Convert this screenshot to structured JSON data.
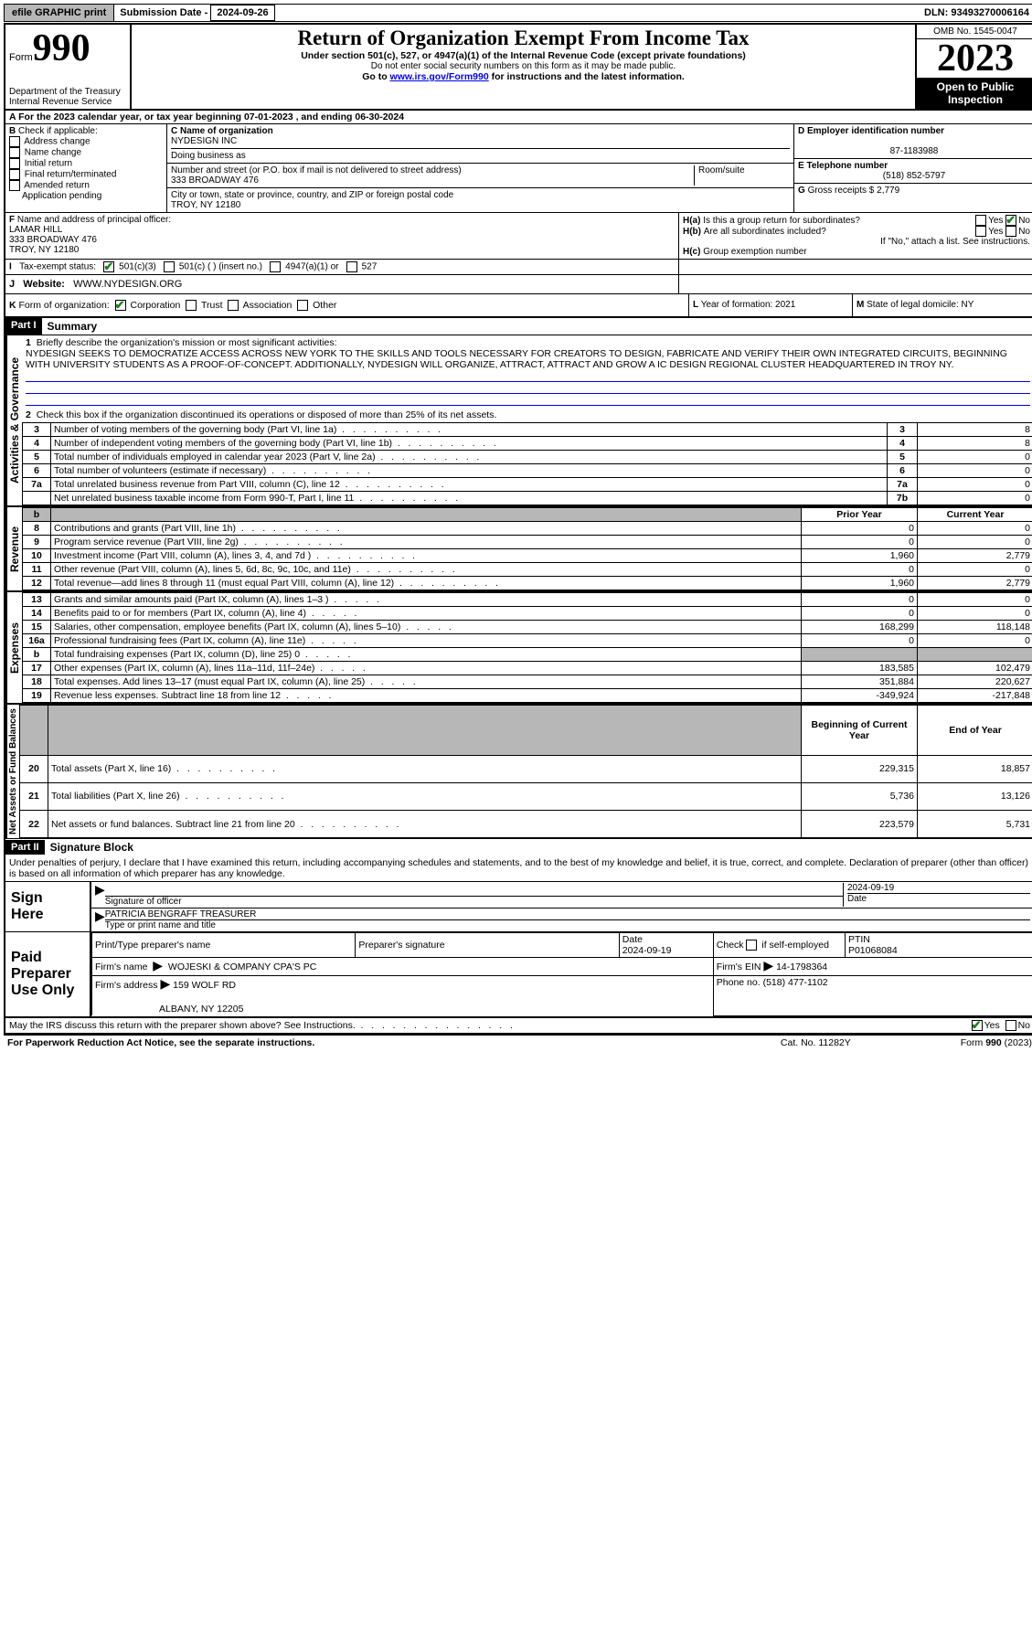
{
  "topbar": {
    "efile": "efile GRAPHIC print",
    "sub_lbl": "Submission Date - ",
    "sub_date": "2024-09-26",
    "dln_lbl": "DLN: ",
    "dln": "93493270006164"
  },
  "header": {
    "form_prefix": "Form",
    "form_no": "990",
    "dept": "Department of the Treasury",
    "irs": "Internal Revenue Service",
    "title": "Return of Organization Exempt From Income Tax",
    "sub1": "Under section 501(c), 527, or 4947(a)(1) of the Internal Revenue Code (except private foundations)",
    "sub2": "Do not enter social security numbers on this form as it may be made public.",
    "sub3_pre": "Go to ",
    "sub3_link": "www.irs.gov/Form990",
    "sub3_post": " for instructions and the latest information.",
    "omb": "OMB No. 1545-0047",
    "year": "2023",
    "open": "Open to Public Inspection"
  },
  "rowA": {
    "label": "A",
    "text": "For the 2023 calendar year, or tax year beginning 07-01-2023    , and ending 06-30-2024"
  },
  "B": {
    "lbl": "B",
    "intro": "Check if applicable:",
    "items": [
      "Address change",
      "Name change",
      "Initial return",
      "Final return/terminated",
      "Amended return",
      "Application pending"
    ]
  },
  "C": {
    "name_lbl": "C Name of organization",
    "name": "NYDESIGN INC",
    "dba_lbl": "Doing business as",
    "addr_lbl": "Number and street (or P.O. box if mail is not delivered to street address)",
    "room_lbl": "Room/suite",
    "addr": "333 BROADWAY 476",
    "city_lbl": "City or town, state or province, country, and ZIP or foreign postal code",
    "city": "TROY, NY  12180"
  },
  "D": {
    "lbl": "D Employer identification number",
    "val": "87-1183988"
  },
  "E": {
    "lbl": "E Telephone number",
    "val": "(518) 852-5797"
  },
  "G": {
    "lbl": "G",
    "text": "Gross receipts $",
    "val": "2,779"
  },
  "F": {
    "lbl": "F",
    "intro": "Name and address of principal officer:",
    "name": "LAMAR HILL",
    "addr1": "333 BROADWAY 476",
    "addr2": "TROY, NY  12180"
  },
  "H": {
    "a_lbl": "H(a)",
    "a_text": "Is this a group return for subordinates?",
    "b_lbl": "H(b)",
    "b_text": "Are all subordinates included?",
    "attach": "If \"No,\" attach a list. See instructions.",
    "c_lbl": "H(c)",
    "c_text": "Group exemption number",
    "yes": "Yes",
    "no": "No"
  },
  "I": {
    "lbl": "I",
    "intro": "Tax-exempt status:",
    "o1": "501(c)(3)",
    "o2": "501(c) (  ) (insert no.)",
    "o3": "4947(a)(1) or",
    "o4": "527"
  },
  "J": {
    "lbl": "J",
    "intro": "Website:",
    "val": "WWW.NYDESIGN.ORG"
  },
  "K": {
    "lbl": "K",
    "intro": "Form of organization:",
    "opts": [
      "Corporation",
      "Trust",
      "Association",
      "Other"
    ]
  },
  "L": {
    "lbl": "L",
    "text": "Year of formation: 2021"
  },
  "M": {
    "lbl": "M",
    "text": "State of legal domicile: NY"
  },
  "part1": {
    "hdr": "Part I",
    "title": "Summary",
    "q1_lbl": "1",
    "q1": "Briefly describe the organization's mission or most significant activities:",
    "mission": "NYDESIGN SEEKS TO DEMOCRATIZE ACCESS ACROSS NEW YORK TO THE SKILLS AND TOOLS NECESSARY FOR CREATORS TO DESIGN, FABRICATE AND VERIFY THEIR OWN INTEGRATED CIRCUITS, BEGINNING WITH UNIVERSITY STUDENTS AS A PROOF-OF-CONCEPT. ADDITIONALLY, NYDESIGN WILL ORGANIZE, ATTRACT, ATTRACT AND GROW A IC DESIGN REGIONAL CLUSTER HEADQUARTERED IN TROY NY.",
    "q2_lbl": "2",
    "q2": "Check this box      if the organization discontinued its operations or disposed of more than 25% of its net assets.",
    "vert_gov": "Activities & Governance",
    "vert_rev": "Revenue",
    "vert_exp": "Expenses",
    "vert_net": "Net Assets or Fund Balances",
    "lines_gov": [
      {
        "n": "3",
        "d": "Number of voting members of the governing body (Part VI, line 1a)",
        "b": "3",
        "v": "8"
      },
      {
        "n": "4",
        "d": "Number of independent voting members of the governing body (Part VI, line 1b)",
        "b": "4",
        "v": "8"
      },
      {
        "n": "5",
        "d": "Total number of individuals employed in calendar year 2023 (Part V, line 2a)",
        "b": "5",
        "v": "0"
      },
      {
        "n": "6",
        "d": "Total number of volunteers (estimate if necessary)",
        "b": "6",
        "v": "0"
      },
      {
        "n": "7a",
        "d": "Total unrelated business revenue from Part VIII, column (C), line 12",
        "b": "7a",
        "v": "0"
      },
      {
        "n": "",
        "d": "Net unrelated business taxable income from Form 990-T, Part I, line 11",
        "b": "7b",
        "v": "0"
      }
    ],
    "col_prior": "Prior Year",
    "col_curr": "Current Year",
    "lines_rev": [
      {
        "n": "8",
        "d": "Contributions and grants (Part VIII, line 1h)",
        "p": "0",
        "c": "0"
      },
      {
        "n": "9",
        "d": "Program service revenue (Part VIII, line 2g)",
        "p": "0",
        "c": "0"
      },
      {
        "n": "10",
        "d": "Investment income (Part VIII, column (A), lines 3, 4, and 7d )",
        "p": "1,960",
        "c": "2,779"
      },
      {
        "n": "11",
        "d": "Other revenue (Part VIII, column (A), lines 5, 6d, 8c, 9c, 10c, and 11e)",
        "p": "0",
        "c": "0"
      },
      {
        "n": "12",
        "d": "Total revenue—add lines 8 through 11 (must equal Part VIII, column (A), line 12)",
        "p": "1,960",
        "c": "2,779"
      }
    ],
    "lines_exp": [
      {
        "n": "13",
        "d": "Grants and similar amounts paid (Part IX, column (A), lines 1–3 )",
        "p": "0",
        "c": "0"
      },
      {
        "n": "14",
        "d": "Benefits paid to or for members (Part IX, column (A), line 4)",
        "p": "0",
        "c": "0"
      },
      {
        "n": "15",
        "d": "Salaries, other compensation, employee benefits (Part IX, column (A), lines 5–10)",
        "p": "168,299",
        "c": "118,148"
      },
      {
        "n": "16a",
        "d": "Professional fundraising fees (Part IX, column (A), line 11e)",
        "p": "0",
        "c": "0"
      },
      {
        "n": "b",
        "d": "Total fundraising expenses (Part IX, column (D), line 25) 0",
        "p": "",
        "c": "",
        "shade": true
      },
      {
        "n": "17",
        "d": "Other expenses (Part IX, column (A), lines 11a–11d, 11f–24e)",
        "p": "183,585",
        "c": "102,479"
      },
      {
        "n": "18",
        "d": "Total expenses. Add lines 13–17 (must equal Part IX, column (A), line 25)",
        "p": "351,884",
        "c": "220,627"
      },
      {
        "n": "19",
        "d": "Revenue less expenses. Subtract line 18 from line 12",
        "p": "-349,924",
        "c": "-217,848"
      }
    ],
    "col_beg": "Beginning of Current Year",
    "col_end": "End of Year",
    "lines_net": [
      {
        "n": "20",
        "d": "Total assets (Part X, line 16)",
        "p": "229,315",
        "c": "18,857"
      },
      {
        "n": "21",
        "d": "Total liabilities (Part X, line 26)",
        "p": "5,736",
        "c": "13,126"
      },
      {
        "n": "22",
        "d": "Net assets or fund balances. Subtract line 21 from line 20",
        "p": "223,579",
        "c": "5,731"
      }
    ]
  },
  "part2": {
    "hdr": "Part II",
    "title": "Signature Block",
    "perjury": "Under penalties of perjury, I declare that I have examined this return, including accompanying schedules and statements, and to the best of my knowledge and belief, it is true, correct, and complete. Declaration of preparer (other than officer) is based on all information of which preparer has any knowledge."
  },
  "sign": {
    "l1": "Sign",
    "l2": "Here",
    "sig_lbl": "Signature of officer",
    "date_lbl": "Date",
    "date_val": "2024-09-19",
    "name": "PATRICIA BENGRAFF  TREASURER",
    "type_lbl": "Type or print name and title"
  },
  "paid": {
    "l1": "Paid",
    "l2": "Preparer",
    "l3": "Use Only",
    "c1": "Print/Type preparer's name",
    "c2": "Preparer's signature",
    "c3": "Date",
    "c3v": "2024-09-19",
    "c4a": "Check",
    "c4b": "if self-employed",
    "c5": "PTIN",
    "c5v": "P01068084",
    "firm_lbl": "Firm's name",
    "firm": "WOJESKI & COMPANY CPA'S PC",
    "ein_lbl": "Firm's EIN",
    "ein": "14-1798364",
    "addr_lbl": "Firm's address",
    "addr1": "159 WOLF RD",
    "addr2": "ALBANY, NY  12205",
    "phone_lbl": "Phone no.",
    "phone": "(518) 477-1102"
  },
  "discuss": {
    "q": "May the IRS discuss this return with the preparer shown above? See Instructions.",
    "yes": "Yes",
    "no": "No"
  },
  "footer": {
    "l": "For Paperwork Reduction Act Notice, see the separate instructions.",
    "c": "Cat. No. 11282Y",
    "r": "Form 990 (2023)"
  },
  "colors": {
    "btn_bg": "#b7b7b7",
    "link": "#0000cd",
    "check": "#1a7f1a"
  }
}
